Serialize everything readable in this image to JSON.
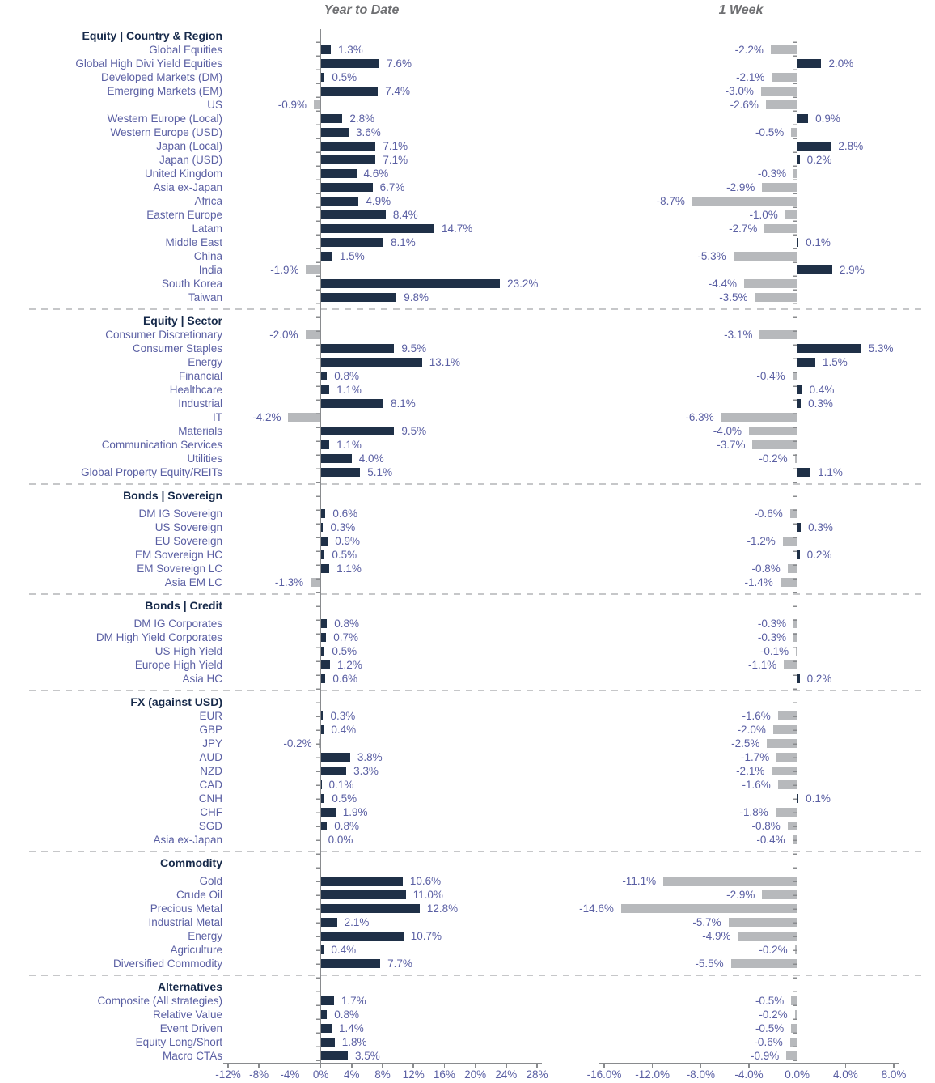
{
  "colors": {
    "bar_positive": "#1f3047",
    "bar_negative": "#b7b9bc",
    "label_text": "#5a5fa3",
    "header_text": "#16294a",
    "title_text": "#6e6f72",
    "axis": "#898b8e",
    "separator": "#c6c7c9"
  },
  "chart_data": {
    "type": "bar",
    "orientation": "horizontal",
    "value_format": "percent_one_decimal",
    "grid": false,
    "legend": "none",
    "panels": [
      {
        "title": "Year to Date",
        "xlim": [
          -12,
          28
        ],
        "ticks": [
          {
            "v": -12,
            "label": "-12%"
          },
          {
            "v": -8,
            "label": "-8%"
          },
          {
            "v": -4,
            "label": "-4%"
          },
          {
            "v": 0,
            "label": "0%"
          },
          {
            "v": 4,
            "label": "4%"
          },
          {
            "v": 8,
            "label": "8%"
          },
          {
            "v": 12,
            "label": "12%"
          },
          {
            "v": 16,
            "label": "16%"
          },
          {
            "v": 20,
            "label": "20%"
          },
          {
            "v": 24,
            "label": "24%"
          },
          {
            "v": 28,
            "label": "28%"
          }
        ]
      },
      {
        "title": "1 Week",
        "xlim": [
          -16,
          8
        ],
        "ticks": [
          {
            "v": -16,
            "label": "-16.0%"
          },
          {
            "v": -12,
            "label": "-12.0%"
          },
          {
            "v": -8,
            "label": "-8.0%"
          },
          {
            "v": -4,
            "label": "-4.0%"
          },
          {
            "v": 0,
            "label": "0.0%"
          },
          {
            "v": 4,
            "label": "4.0%"
          },
          {
            "v": 8,
            "label": "8.0%"
          }
        ]
      }
    ],
    "groups": [
      {
        "name": "Equity | Country & Region",
        "rows": [
          {
            "label": "Global Equities",
            "ytd": 1.3,
            "week": -2.2
          },
          {
            "label": "Global High Divi Yield Equities",
            "ytd": 7.6,
            "week": 2.0
          },
          {
            "label": "Developed Markets (DM)",
            "ytd": 0.5,
            "week": -2.1
          },
          {
            "label": "Emerging Markets (EM)",
            "ytd": 7.4,
            "week": -3.0
          },
          {
            "label": "US",
            "ytd": -0.9,
            "week": -2.6
          },
          {
            "label": "Western Europe (Local)",
            "ytd": 2.8,
            "week": 0.9
          },
          {
            "label": "Western Europe (USD)",
            "ytd": 3.6,
            "week": -0.5
          },
          {
            "label": "Japan (Local)",
            "ytd": 7.1,
            "week": 2.8
          },
          {
            "label": "Japan (USD)",
            "ytd": 7.1,
            "week": 0.2
          },
          {
            "label": "United Kingdom",
            "ytd": 4.6,
            "week": -0.3
          },
          {
            "label": "Asia ex-Japan",
            "ytd": 6.7,
            "week": -2.9
          },
          {
            "label": "Africa",
            "ytd": 4.9,
            "week": -8.7
          },
          {
            "label": "Eastern Europe",
            "ytd": 8.4,
            "week": -1.0
          },
          {
            "label": "Latam",
            "ytd": 14.7,
            "week": -2.7
          },
          {
            "label": "Middle East",
            "ytd": 8.1,
            "week": 0.1
          },
          {
            "label": "China",
            "ytd": 1.5,
            "week": -5.3
          },
          {
            "label": "India",
            "ytd": -1.9,
            "week": 2.9
          },
          {
            "label": "South Korea",
            "ytd": 23.2,
            "week": -4.4
          },
          {
            "label": "Taiwan",
            "ytd": 9.8,
            "week": -3.5
          }
        ]
      },
      {
        "name": "Equity | Sector",
        "rows": [
          {
            "label": "Consumer Discretionary",
            "ytd": -2.0,
            "week": -3.1
          },
          {
            "label": "Consumer Staples",
            "ytd": 9.5,
            "week": 5.3
          },
          {
            "label": "Energy",
            "ytd": 13.1,
            "week": 1.5
          },
          {
            "label": "Financial",
            "ytd": 0.8,
            "week": -0.4
          },
          {
            "label": "Healthcare",
            "ytd": 1.1,
            "week": 0.4
          },
          {
            "label": "Industrial",
            "ytd": 8.1,
            "week": 0.3
          },
          {
            "label": "IT",
            "ytd": -4.2,
            "week": -6.3
          },
          {
            "label": "Materials",
            "ytd": 9.5,
            "week": -4.0
          },
          {
            "label": "Communication Services",
            "ytd": 1.1,
            "week": -3.7
          },
          {
            "label": "Utilities",
            "ytd": 4.0,
            "week": -0.2
          },
          {
            "label": "Global Property Equity/REITs",
            "ytd": 5.1,
            "week": 1.1
          }
        ]
      },
      {
        "name": "Bonds | Sovereign",
        "rows": [
          {
            "label": "DM IG Sovereign",
            "ytd": 0.6,
            "week": -0.6
          },
          {
            "label": "US Sovereign",
            "ytd": 0.3,
            "week": 0.3
          },
          {
            "label": "EU Sovereign",
            "ytd": 0.9,
            "week": -1.2
          },
          {
            "label": "EM Sovereign HC",
            "ytd": 0.5,
            "week": 0.2
          },
          {
            "label": "EM Sovereign LC",
            "ytd": 1.1,
            "week": -0.8
          },
          {
            "label": "Asia EM LC",
            "ytd": -1.3,
            "week": -1.4
          }
        ]
      },
      {
        "name": "Bonds | Credit",
        "rows": [
          {
            "label": "DM IG Corporates",
            "ytd": 0.8,
            "week": -0.3
          },
          {
            "label": "DM High Yield Corporates",
            "ytd": 0.7,
            "week": -0.3
          },
          {
            "label": "US High Yield",
            "ytd": 0.5,
            "week": -0.1
          },
          {
            "label": "Europe High Yield",
            "ytd": 1.2,
            "week": -1.1
          },
          {
            "label": "Asia HC",
            "ytd": 0.6,
            "week": 0.2
          }
        ]
      },
      {
        "name": "FX (against USD)",
        "rows": [
          {
            "label": "EUR",
            "ytd": 0.3,
            "week": -1.6
          },
          {
            "label": "GBP",
            "ytd": 0.4,
            "week": -2.0
          },
          {
            "label": "JPY",
            "ytd": -0.2,
            "week": -2.5
          },
          {
            "label": "AUD",
            "ytd": 3.8,
            "week": -1.7
          },
          {
            "label": "NZD",
            "ytd": 3.3,
            "week": -2.1
          },
          {
            "label": "CAD",
            "ytd": 0.1,
            "week": -1.6
          },
          {
            "label": "CNH",
            "ytd": 0.5,
            "week": 0.1
          },
          {
            "label": "CHF",
            "ytd": 1.9,
            "week": -1.8
          },
          {
            "label": "SGD",
            "ytd": 0.8,
            "week": -0.8
          },
          {
            "label": "Asia ex-Japan",
            "ytd": 0.0,
            "week": -0.4
          }
        ]
      },
      {
        "name": "Commodity",
        "rows": [
          {
            "label": "Gold",
            "ytd": 10.6,
            "week": -11.1
          },
          {
            "label": "Crude Oil",
            "ytd": 11.0,
            "week": -2.9
          },
          {
            "label": "Precious Metal",
            "ytd": 12.8,
            "week": -14.6
          },
          {
            "label": "Industrial Metal",
            "ytd": 2.1,
            "week": -5.7
          },
          {
            "label": "Energy",
            "ytd": 10.7,
            "week": -4.9
          },
          {
            "label": "Agriculture",
            "ytd": 0.4,
            "week": -0.2
          },
          {
            "label": "Diversified Commodity",
            "ytd": 7.7,
            "week": -5.5
          }
        ]
      },
      {
        "name": "Alternatives",
        "rows": [
          {
            "label": "Composite (All strategies)",
            "ytd": 1.7,
            "week": -0.5
          },
          {
            "label": "Relative Value",
            "ytd": 0.8,
            "week": -0.2
          },
          {
            "label": "Event Driven",
            "ytd": 1.4,
            "week": -0.5
          },
          {
            "label": "Equity Long/Short",
            "ytd": 1.8,
            "week": -0.6
          },
          {
            "label": "Macro CTAs",
            "ytd": 3.5,
            "week": -0.9
          }
        ]
      }
    ]
  }
}
